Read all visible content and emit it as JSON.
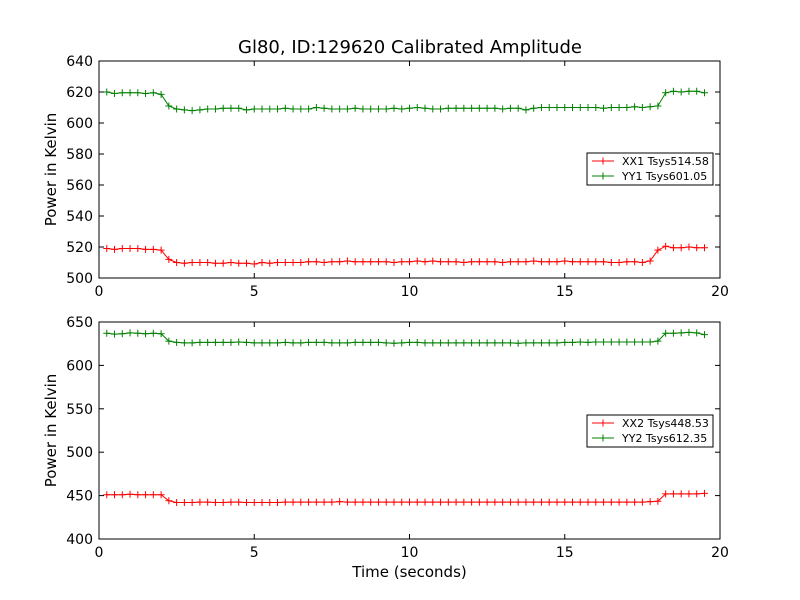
{
  "figure": {
    "title": "Gl80, ID:129620 Calibrated Amplitude",
    "background": "#ffffff"
  },
  "chart_data": [
    {
      "type": "line",
      "title": "Gl80, ID:129620 Calibrated Amplitude",
      "xlabel": "",
      "ylabel": "Power in Kelvin",
      "xlim": [
        0,
        20
      ],
      "ylim": [
        500,
        640
      ],
      "xticks": [
        0,
        5,
        10,
        15,
        20
      ],
      "yticks": [
        500,
        520,
        540,
        560,
        580,
        600,
        620,
        640
      ],
      "grid": false,
      "legend_position": "center-right",
      "marker": "+",
      "x": [
        0.25,
        0.5,
        0.75,
        1.0,
        1.25,
        1.5,
        1.75,
        2.0,
        2.25,
        2.5,
        2.75,
        3.0,
        3.25,
        3.5,
        3.75,
        4.0,
        4.25,
        4.5,
        4.75,
        5.0,
        5.25,
        5.5,
        5.75,
        6.0,
        6.25,
        6.5,
        6.75,
        7.0,
        7.25,
        7.5,
        7.75,
        8.0,
        8.25,
        8.5,
        8.75,
        9.0,
        9.25,
        9.5,
        9.75,
        10.0,
        10.25,
        10.5,
        10.75,
        11.0,
        11.25,
        11.5,
        11.75,
        12.0,
        12.25,
        12.5,
        12.75,
        13.0,
        13.25,
        13.5,
        13.75,
        14.0,
        14.25,
        14.5,
        14.75,
        15.0,
        15.25,
        15.5,
        15.75,
        16.0,
        16.25,
        16.5,
        16.75,
        17.0,
        17.25,
        17.5,
        17.75,
        18.0,
        18.25,
        18.5,
        18.75,
        19.0,
        19.25,
        19.5
      ],
      "series": [
        {
          "name": "XX1 Tsys514.58",
          "color": "#ff0000",
          "values": [
            519,
            518.5,
            519,
            519,
            519,
            518.5,
            518.5,
            518,
            512,
            510,
            509.5,
            510,
            510,
            510,
            509.5,
            509.5,
            510,
            509.5,
            509.5,
            509,
            510,
            509.5,
            510,
            510,
            510,
            510,
            510.5,
            510.5,
            510,
            510.5,
            510.5,
            511,
            510.5,
            510.5,
            510.5,
            510.5,
            510.5,
            510,
            510.5,
            510.5,
            511,
            510.5,
            511,
            510.5,
            510.5,
            510.5,
            510,
            510.5,
            510.5,
            510.5,
            510.5,
            510,
            510.5,
            510.5,
            510.5,
            511,
            510.5,
            510.5,
            510.5,
            511,
            510.5,
            510.5,
            510.5,
            510.5,
            510.5,
            510,
            510,
            510.5,
            510.5,
            510,
            511,
            518,
            520.5,
            519.5,
            519.5,
            520,
            519.5,
            519.5
          ]
        },
        {
          "name": "YY1 Tsys601.05",
          "color": "#008000",
          "values": [
            620,
            619,
            619.5,
            619.5,
            619.5,
            619,
            619.5,
            618.5,
            611,
            609,
            608.5,
            608,
            608.5,
            609,
            609,
            609.5,
            609.5,
            609.5,
            608.5,
            609,
            609,
            609,
            609,
            609.5,
            609,
            609,
            609,
            610,
            609.5,
            609,
            609,
            609,
            609.5,
            609,
            609,
            609,
            609,
            609.5,
            609,
            609.5,
            610,
            609.5,
            609,
            609,
            609.5,
            609.5,
            609.5,
            609.5,
            609.5,
            609.5,
            609.5,
            609,
            609.5,
            609.5,
            608.5,
            609.5,
            610,
            610,
            610,
            610,
            610,
            610,
            610,
            610,
            609.5,
            610,
            610,
            610,
            610.5,
            610,
            610.5,
            611,
            619.5,
            620.5,
            620,
            620.5,
            620.5,
            619.5
          ]
        }
      ]
    },
    {
      "type": "line",
      "title": "",
      "xlabel": "Time (seconds)",
      "ylabel": "Power in Kelvin",
      "xlim": [
        0,
        20
      ],
      "ylim": [
        400,
        650
      ],
      "xticks": [
        0,
        5,
        10,
        15,
        20
      ],
      "yticks": [
        400,
        450,
        500,
        550,
        600,
        650
      ],
      "grid": false,
      "legend_position": "center-right",
      "marker": "+",
      "x": [
        0.25,
        0.5,
        0.75,
        1.0,
        1.25,
        1.5,
        1.75,
        2.0,
        2.25,
        2.5,
        2.75,
        3.0,
        3.25,
        3.5,
        3.75,
        4.0,
        4.25,
        4.5,
        4.75,
        5.0,
        5.25,
        5.5,
        5.75,
        6.0,
        6.25,
        6.5,
        6.75,
        7.0,
        7.25,
        7.5,
        7.75,
        8.0,
        8.25,
        8.5,
        8.75,
        9.0,
        9.25,
        9.5,
        9.75,
        10.0,
        10.25,
        10.5,
        10.75,
        11.0,
        11.25,
        11.5,
        11.75,
        12.0,
        12.25,
        12.5,
        12.75,
        13.0,
        13.25,
        13.5,
        13.75,
        14.0,
        14.25,
        14.5,
        14.75,
        15.0,
        15.25,
        15.5,
        15.75,
        16.0,
        16.25,
        16.5,
        16.75,
        17.0,
        17.25,
        17.5,
        17.75,
        18.0,
        18.25,
        18.5,
        18.75,
        19.0,
        19.25,
        19.5
      ],
      "series": [
        {
          "name": "XX2 Tsys448.53",
          "color": "#ff0000",
          "values": [
            451,
            451,
            451,
            451.5,
            451,
            451,
            451,
            451,
            444,
            442,
            442,
            442,
            442.5,
            442.5,
            442,
            442,
            442.5,
            442.5,
            442,
            442,
            442,
            442,
            442,
            442.5,
            442.5,
            442.5,
            442.5,
            442.5,
            442.5,
            442.5,
            443,
            442.5,
            442.5,
            442.5,
            442.5,
            442.5,
            442.5,
            442.5,
            442.5,
            442.5,
            442.5,
            442.5,
            442.5,
            442.5,
            442.5,
            442.5,
            442.5,
            442.5,
            442.5,
            442.5,
            442.5,
            442.5,
            442.5,
            442.5,
            442.5,
            442.5,
            442.5,
            442.5,
            442.5,
            442.5,
            442.5,
            442.5,
            442.5,
            442.5,
            442.5,
            442.5,
            442.5,
            442.5,
            442.5,
            442.5,
            443,
            443.5,
            452,
            452,
            452,
            452,
            452,
            452.5
          ]
        },
        {
          "name": "YY2 Tsys612.35",
          "color": "#008000",
          "values": [
            637,
            636,
            636.5,
            637.5,
            637,
            636.5,
            637,
            636.5,
            628,
            626.5,
            626,
            626,
            626.5,
            626.5,
            626.5,
            626.5,
            626.5,
            627,
            626.5,
            626,
            626,
            626,
            626,
            626.5,
            626,
            626,
            626.5,
            626.5,
            626.5,
            626,
            626,
            626,
            626.5,
            626.5,
            626.5,
            626.5,
            626,
            625.5,
            626,
            626.5,
            626.5,
            626,
            626,
            626,
            626,
            626,
            626,
            626,
            626,
            626,
            626,
            626,
            626,
            625.5,
            626,
            626,
            626,
            626,
            626,
            626.5,
            626.5,
            627,
            626.5,
            627,
            627,
            627,
            627,
            627,
            627,
            627,
            627,
            628,
            637,
            637,
            637.5,
            638,
            637.5,
            635.5
          ]
        }
      ]
    }
  ]
}
